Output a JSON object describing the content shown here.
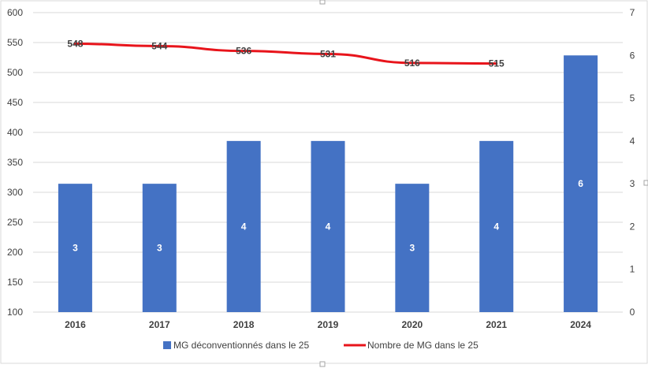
{
  "chart_data": {
    "type": "bar+line",
    "title": "",
    "categories": [
      "2016",
      "2017",
      "2018",
      "2019",
      "2020",
      "2021",
      "2024"
    ],
    "series": [
      {
        "name": "MG déconventionnés dans le 25",
        "type": "bar",
        "axis": "right",
        "color": "#4472C4",
        "values": [
          3,
          3,
          4,
          4,
          3,
          4,
          6
        ],
        "labels": [
          "3",
          "3",
          "4",
          "4",
          "3",
          "4",
          "6"
        ]
      },
      {
        "name": "Nombre de MG dans le 25",
        "type": "line",
        "axis": "left",
        "color": "#E8141B",
        "values": [
          548,
          544,
          536,
          531,
          516,
          515,
          null
        ],
        "labels": [
          "548",
          "544",
          "536",
          "531",
          "516",
          "515",
          ""
        ]
      }
    ],
    "y_left": {
      "min": 100,
      "max": 600,
      "ticks": [
        "100",
        "150",
        "200",
        "250",
        "300",
        "350",
        "400",
        "450",
        "500",
        "550",
        "600"
      ]
    },
    "y_right": {
      "min": 0,
      "max": 7,
      "ticks": [
        "0",
        "1",
        "2",
        "3",
        "4",
        "5",
        "6",
        "7"
      ]
    },
    "grid": true,
    "legend_position": "bottom"
  }
}
